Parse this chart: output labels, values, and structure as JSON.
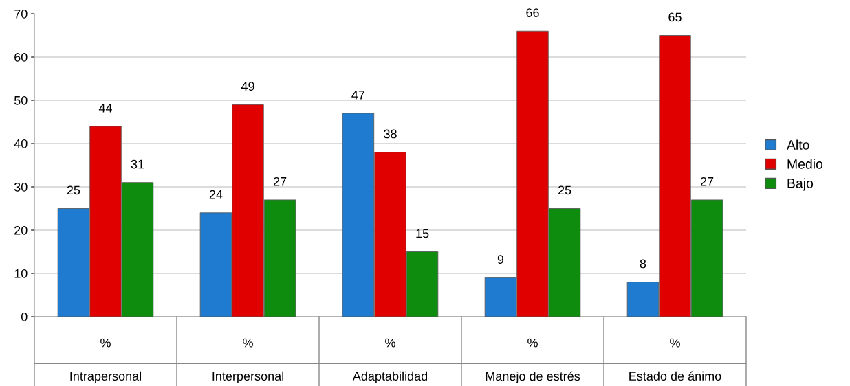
{
  "chart_data": {
    "type": "bar",
    "categories": [
      "%\nIntrapersonal",
      "%\nInterpersonal",
      "%\nAdaptabilidad",
      "%\nManejo de estrés",
      "%\nEstado de ánimo"
    ],
    "series": [
      {
        "name": "Alto",
        "color": "#1f7bd0",
        "values": [
          25,
          24,
          47,
          9,
          8
        ]
      },
      {
        "name": "Medio",
        "color": "#e00000",
        "values": [
          44,
          49,
          38,
          66,
          65
        ]
      },
      {
        "name": "Bajo",
        "color": "#0e8c0e",
        "values": [
          31,
          27,
          15,
          25,
          27
        ]
      }
    ],
    "ylim": [
      0,
      70
    ],
    "yticks": [
      0,
      10,
      20,
      30,
      40,
      50,
      60,
      70
    ],
    "grid": "y",
    "legend": "right",
    "data_labels": true
  }
}
